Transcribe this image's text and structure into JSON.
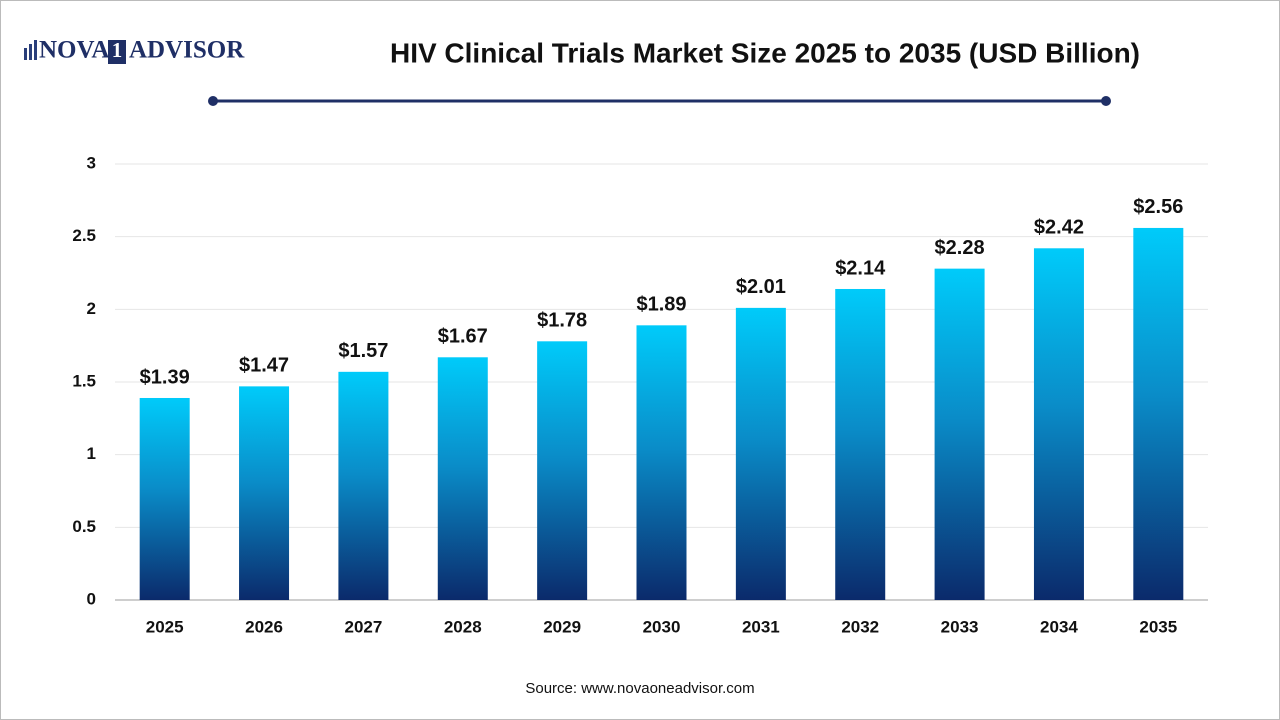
{
  "logo": {
    "left": "NOVA",
    "mark": "1",
    "right": "ADVISOR"
  },
  "chart_data": {
    "type": "bar",
    "title": "HIV Clinical Trials Market Size 2025 to 2035 (USD Billion)",
    "categories": [
      "2025",
      "2026",
      "2027",
      "2028",
      "2029",
      "2030",
      "2031",
      "2032",
      "2033",
      "2034",
      "2035"
    ],
    "values": [
      1.39,
      1.47,
      1.57,
      1.67,
      1.78,
      1.89,
      2.01,
      2.14,
      2.28,
      2.42,
      2.56
    ],
    "value_labels": [
      "$1.39",
      "$1.47",
      "$1.57",
      "$1.67",
      "$1.78",
      "$1.89",
      "$2.01",
      "$2.14",
      "$2.28",
      "$2.42",
      "$2.56"
    ],
    "color": "#00c8f8",
    "ylim": [
      0,
      3
    ],
    "yticks": [
      0,
      0.5,
      1,
      1.5,
      2,
      2.5,
      3
    ],
    "grid": true,
    "source": "Source: www.novaoneadvisor.com"
  }
}
